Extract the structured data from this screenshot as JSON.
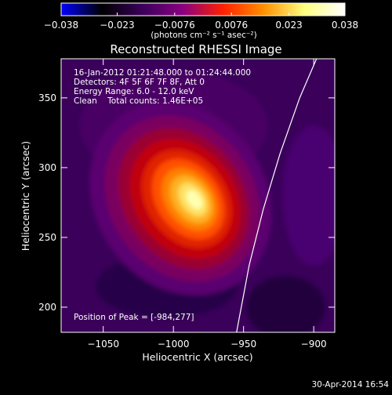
{
  "chart_data": {
    "type": "heatmap",
    "title": "Reconstructed RHESSI Image",
    "xlabel": "Heliocentric X (arcsec)",
    "ylabel": "Heliocentric Y (arcsec)",
    "xlim": [
      -1080,
      -885
    ],
    "ylim": [
      182,
      378
    ],
    "x_ticks": [
      -1050,
      -1000,
      -950,
      -900
    ],
    "x_tick_labels": [
      "−1050",
      "−1000",
      "−950",
      "−900"
    ],
    "y_ticks": [
      200,
      250,
      300,
      350
    ],
    "y_tick_labels": [
      "200",
      "250",
      "300",
      "350"
    ],
    "colorbar": {
      "min": -0.038,
      "max": 0.038,
      "ticks": [
        -0.038,
        -0.023,
        -0.0076,
        0.0076,
        0.023,
        0.038
      ],
      "tick_labels": [
        "−0.038",
        "−0.023",
        "−0.0076",
        "0.0076",
        "0.023",
        "0.038"
      ],
      "unit_label": "(photons cm⁻² s⁻¹ asec⁻²)",
      "colors": [
        "#0000ff",
        "#000000",
        "#3a005a",
        "#8a0080",
        "#ff2000",
        "#ff9000",
        "#ffff80",
        "#ffffff"
      ]
    },
    "annotations": {
      "time": "16-Jan-2012 01:21:48.000 to 01:24:44.000",
      "detectors": "Detectors: 4F 5F 6F 7F 8F, Att 0",
      "energy": "Energy Range: 6.0 - 12.0 keV",
      "method": "Clean    Total counts: 1.46E+05",
      "peak": "Position of Peak = [-984,277]"
    },
    "peak": {
      "x": -984,
      "y": 277,
      "value": 0.038
    },
    "limb_curve": [
      [
        -955,
        182
      ],
      [
        -946,
        230
      ],
      [
        -936,
        270
      ],
      [
        -924,
        310
      ],
      [
        -910,
        350
      ],
      [
        -898,
        378
      ]
    ],
    "timestamp": "30-Apr-2014 16:54"
  }
}
